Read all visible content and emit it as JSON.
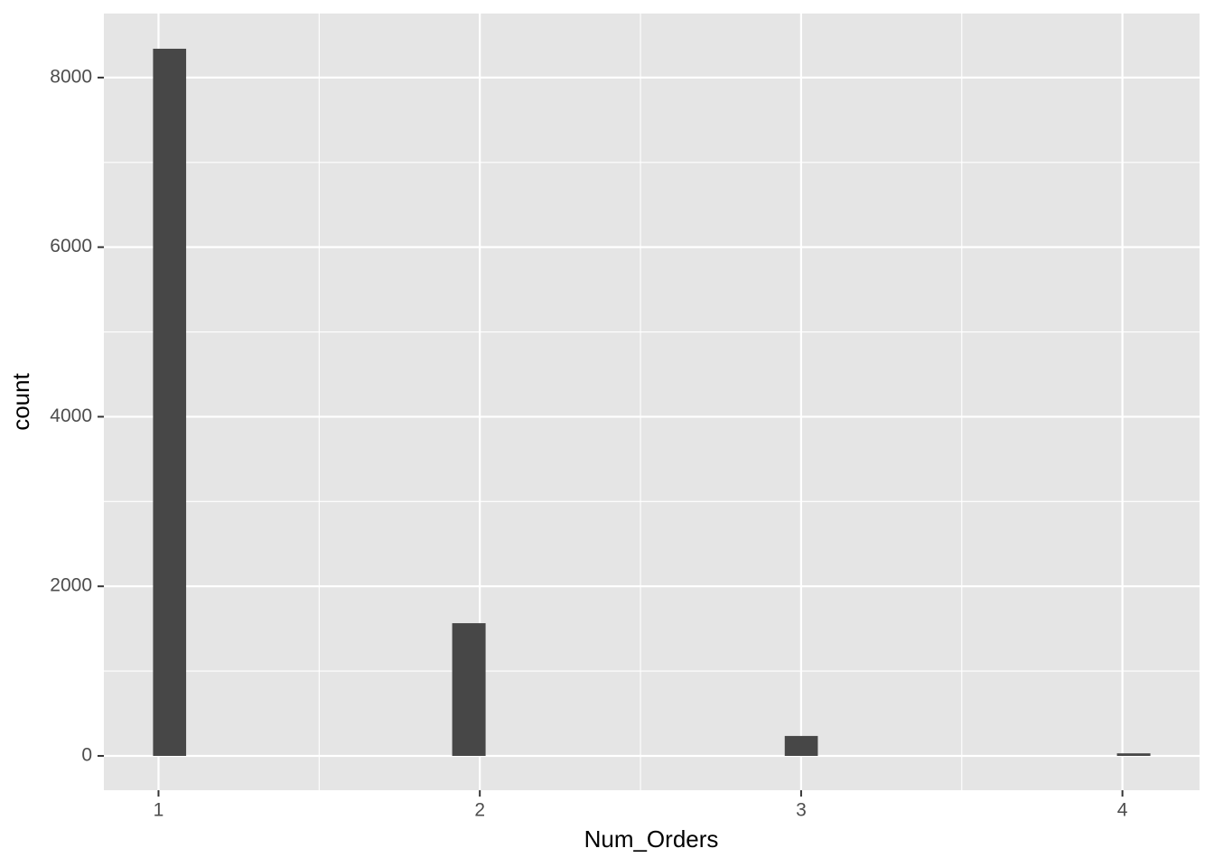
{
  "chart_data": {
    "type": "histogram",
    "xlabel": "Num_Orders",
    "ylabel": "count",
    "bins": [
      0.983,
      1.086,
      1.19,
      1.293,
      1.397,
      1.5,
      1.604,
      1.707,
      1.811,
      1.914,
      2.018,
      2.121,
      2.224,
      2.328,
      2.431,
      2.535,
      2.638,
      2.742,
      2.845,
      2.949,
      3.052,
      3.155,
      3.259,
      3.362,
      3.466,
      3.569,
      3.673,
      3.776,
      3.88,
      3.983,
      4.087
    ],
    "values": [
      8340,
      0,
      0,
      0,
      0,
      0,
      0,
      0,
      0,
      1565,
      0,
      0,
      0,
      0,
      0,
      0,
      0,
      0,
      0,
      235,
      0,
      0,
      0,
      0,
      0,
      0,
      0,
      0,
      0,
      30
    ],
    "color": "#474747",
    "xlim": [
      0.83,
      4.24
    ],
    "ylim": [
      -405,
      8755
    ],
    "xticks": [
      1,
      2,
      3,
      4
    ],
    "yticks": [
      0,
      2000,
      4000,
      6000,
      8000
    ],
    "xminor": [
      1.5,
      2.5,
      3.5
    ],
    "yminor": [
      1000,
      3000,
      5000,
      7000
    ],
    "grid": true
  }
}
